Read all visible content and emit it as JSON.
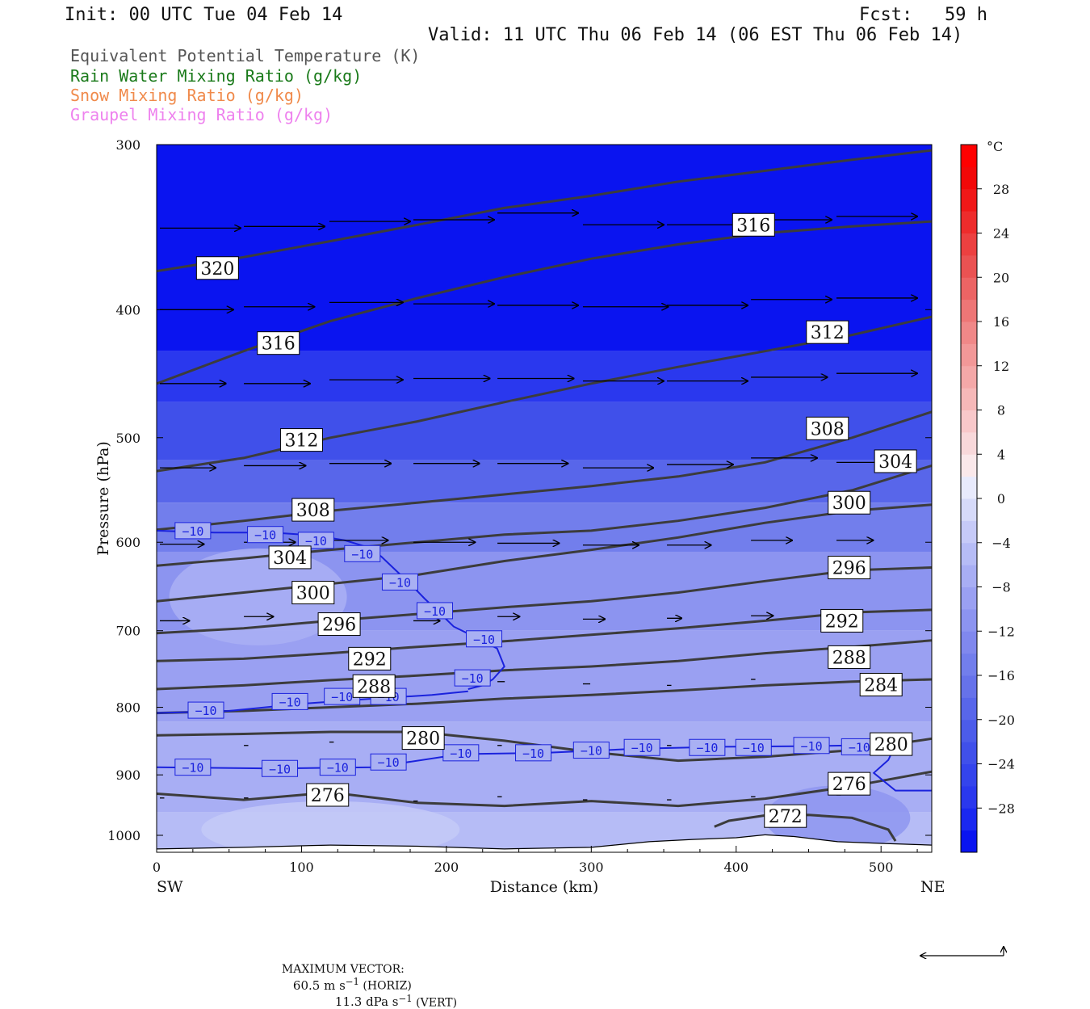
{
  "header": {
    "init": "Init: 00 UTC Tue 04 Feb 14",
    "fcst": "Fcst:   59 h",
    "valid": "Valid: 11 UTC Thu 06 Feb 14 (06 EST Thu 06 Feb 14)"
  },
  "legend": [
    {
      "text": "Equivalent Potential Temperature (K)",
      "color": "#555555"
    },
    {
      "text": "Rain Water Mixing Ratio (g/kg)",
      "color": "#1a7a1a"
    },
    {
      "text": "Snow Mixing Ratio (g/kg)",
      "color": "#f08a4b"
    },
    {
      "text": "Graupel Mixing Ratio (g/kg)",
      "color": "#ee82ee"
    }
  ],
  "chart_data": {
    "type": "heatmap",
    "title": "",
    "xlabel": "Distance (km)",
    "ylabel": "Pressure (hPa)",
    "xlim": [
      0,
      535
    ],
    "ylim": [
      1030,
      300
    ],
    "y_scale": "log",
    "xticks": [
      0,
      100,
      200,
      300,
      400,
      500
    ],
    "yticks": [
      300,
      400,
      500,
      600,
      700,
      800,
      900,
      1000
    ],
    "x_end_labels": {
      "left": "SW",
      "right": "NE"
    },
    "colorbar": {
      "unit": "°C",
      "ticks": [
        "28",
        "24",
        "20",
        "16",
        "12",
        "8",
        "4",
        "0",
        "−4",
        "−8",
        "−12",
        "−16",
        "−20",
        "−24",
        "−28"
      ],
      "tick_values": [
        28,
        24,
        20,
        16,
        12,
        8,
        4,
        0,
        -4,
        -8,
        -12,
        -16,
        -20,
        -24,
        -28
      ],
      "levels": [
        -32,
        -30,
        -28,
        -26,
        -24,
        -22,
        -20,
        -18,
        -16,
        -14,
        -12,
        -10,
        -8,
        -6,
        -4,
        -2,
        0,
        2,
        4,
        6,
        8,
        10,
        12,
        14,
        16,
        18,
        20,
        22,
        24,
        26,
        28,
        30,
        32
      ],
      "colors": [
        "#0a14f0",
        "#1a28f0",
        "#2a38ee",
        "#3444ec",
        "#4050ea",
        "#4c5cea",
        "#5866ea",
        "#6672ea",
        "#727eec",
        "#8088ee",
        "#8c94f0",
        "#9aa0f2",
        "#a8aef4",
        "#b6bcf6",
        "#c6caf8",
        "#d6daf9",
        "#e8eafc",
        "#fae8ea",
        "#f8d8da",
        "#f8c8ca",
        "#f6b8b8",
        "#f4a8a8",
        "#f29898",
        "#f08888",
        "#ee7676",
        "#ec6464",
        "#ea5252",
        "#ec4040",
        "#ee2c2c",
        "#f01818",
        "#f20808",
        "#ff0000"
      ]
    },
    "theta_e_contours": [
      {
        "label": "320",
        "x": [
          0,
          60,
          120,
          180,
          240,
          300,
          360,
          420,
          480,
          535
        ],
        "p": [
          374,
          365,
          355,
          345,
          335,
          328,
          320,
          314,
          308,
          303
        ]
      },
      {
        "label": "316",
        "x": [
          0,
          60,
          120,
          180,
          240,
          300,
          360,
          420,
          480,
          535
        ],
        "p": [
          455,
          430,
          408,
          392,
          378,
          366,
          357,
          350,
          346,
          343
        ]
      },
      {
        "label": "312",
        "x": [
          0,
          60,
          120,
          180,
          240,
          300,
          360,
          420,
          480,
          535
        ],
        "p": [
          530,
          518,
          500,
          486,
          470,
          455,
          442,
          430,
          418,
          405
        ]
      },
      {
        "label": "308",
        "x": [
          0,
          60,
          120,
          180,
          240,
          300,
          360,
          420,
          480,
          535
        ],
        "p": [
          587,
          578,
          568,
          560,
          552,
          544,
          535,
          522,
          500,
          478
        ]
      },
      {
        "label": "304",
        "x": [
          0,
          60,
          120,
          180,
          240,
          300,
          360,
          420,
          480,
          535
        ],
        "p": [
          625,
          617,
          608,
          600,
          592,
          588,
          578,
          565,
          548,
          525
        ]
      },
      {
        "label": "300",
        "x": [
          0,
          60,
          120,
          180,
          240,
          300,
          360,
          420,
          480,
          535
        ],
        "p": [
          665,
          655,
          645,
          635,
          620,
          608,
          595,
          580,
          568,
          562
        ]
      },
      {
        "label": "296",
        "x": [
          0,
          60,
          120,
          180,
          240,
          300,
          360,
          420,
          480,
          535
        ],
        "p": [
          703,
          697,
          688,
          680,
          672,
          665,
          655,
          642,
          630,
          627
        ]
      },
      {
        "label": "292",
        "x": [
          0,
          60,
          120,
          180,
          240,
          300,
          360,
          420,
          480,
          535
        ],
        "p": [
          738,
          735,
          728,
          720,
          713,
          705,
          697,
          688,
          678,
          675
        ]
      },
      {
        "label": "288",
        "x": [
          0,
          60,
          120,
          180,
          240,
          300,
          360,
          420,
          480,
          535
        ],
        "p": [
          775,
          770,
          763,
          757,
          750,
          745,
          738,
          728,
          720,
          712
        ]
      },
      {
        "label": "284",
        "x": [
          0,
          60,
          120,
          180,
          240,
          300,
          360,
          420,
          480,
          535
        ],
        "p": [
          808,
          805,
          800,
          795,
          788,
          783,
          777,
          770,
          765,
          762
        ]
      },
      {
        "label": "280",
        "x": [
          0,
          60,
          120,
          180,
          240,
          300,
          360,
          420,
          480,
          535
        ],
        "p": [
          840,
          838,
          835,
          835,
          848,
          865,
          878,
          872,
          862,
          845
        ]
      },
      {
        "label": "276",
        "x": [
          0,
          60,
          120,
          180,
          240,
          300,
          360,
          420,
          480,
          535
        ],
        "p": [
          930,
          940,
          928,
          945,
          950,
          942,
          950,
          938,
          918,
          895
        ]
      },
      {
        "label": "272",
        "x": [
          385,
          395,
          420,
          450,
          480,
          505,
          510
        ],
        "p": [
          985,
          975,
          966,
          965,
          970,
          990,
          1010
        ]
      }
    ],
    "temperature_contours": [
      {
        "label": "−10",
        "x": [
          0,
          40,
          80,
          110,
          130,
          145,
          155,
          165,
          175,
          185,
          195,
          205,
          220,
          235,
          240,
          232,
          225,
          215
        ],
        "p": [
          588,
          590,
          590,
          593,
          598,
          605,
          615,
          630,
          645,
          662,
          678,
          695,
          708,
          722,
          745,
          762,
          770,
          775
        ]
      },
      {
        "label": "−10",
        "x": [
          0,
          50,
          100,
          150,
          190,
          215
        ],
        "p": [
          808,
          805,
          795,
          788,
          783,
          778
        ]
      },
      {
        "label": "−10",
        "x": [
          0,
          80,
          150,
          210,
          270,
          330,
          390,
          450,
          510,
          505,
          495,
          510,
          535
        ],
        "p": [
          888,
          890,
          888,
          868,
          866,
          860,
          857,
          856,
          854,
          877,
          897,
          925,
          925
        ]
      }
    ],
    "temp_labels": [
      {
        "text": "−10",
        "x": 25,
        "p": 588
      },
      {
        "text": "−10",
        "x": 75,
        "p": 592
      },
      {
        "text": "−10",
        "x": 110,
        "p": 598
      },
      {
        "text": "−10",
        "x": 142,
        "p": 612
      },
      {
        "text": "−10",
        "x": 168,
        "p": 643
      },
      {
        "text": "−10",
        "x": 192,
        "p": 676
      },
      {
        "text": "−10",
        "x": 226,
        "p": 710
      },
      {
        "text": "−10",
        "x": 218,
        "p": 760
      },
      {
        "text": "−10",
        "x": 34,
        "p": 804
      },
      {
        "text": "−10",
        "x": 92,
        "p": 792
      },
      {
        "text": "−10",
        "x": 128,
        "p": 785
      },
      {
        "text": "−10",
        "x": 160,
        "p": 785
      },
      {
        "text": "−10",
        "x": 25,
        "p": 888
      },
      {
        "text": "−10",
        "x": 85,
        "p": 890
      },
      {
        "text": "−10",
        "x": 125,
        "p": 888
      },
      {
        "text": "−10",
        "x": 160,
        "p": 880
      },
      {
        "text": "−10",
        "x": 210,
        "p": 866
      },
      {
        "text": "−10",
        "x": 260,
        "p": 866
      },
      {
        "text": "−10",
        "x": 300,
        "p": 862
      },
      {
        "text": "−10",
        "x": 335,
        "p": 858
      },
      {
        "text": "−10",
        "x": 380,
        "p": 858
      },
      {
        "text": "−10",
        "x": 412,
        "p": 858
      },
      {
        "text": "−10",
        "x": 452,
        "p": 855
      },
      {
        "text": "−10",
        "x": 485,
        "p": 857
      }
    ],
    "theta_labels": [
      {
        "text": "316",
        "x": 412,
        "p": 345
      },
      {
        "text": "320",
        "x": 42,
        "p": 372
      },
      {
        "text": "316",
        "x": 84,
        "p": 424
      },
      {
        "text": "312",
        "x": 463,
        "p": 416
      },
      {
        "text": "312",
        "x": 100,
        "p": 502
      },
      {
        "text": "308",
        "x": 463,
        "p": 492
      },
      {
        "text": "304",
        "x": 510,
        "p": 521
      },
      {
        "text": "308",
        "x": 108,
        "p": 567
      },
      {
        "text": "300",
        "x": 478,
        "p": 560
      },
      {
        "text": "304",
        "x": 92,
        "p": 616
      },
      {
        "text": "296",
        "x": 478,
        "p": 627
      },
      {
        "text": "300",
        "x": 108,
        "p": 655
      },
      {
        "text": "292",
        "x": 473,
        "p": 688
      },
      {
        "text": "296",
        "x": 126,
        "p": 692
      },
      {
        "text": "288",
        "x": 478,
        "p": 733
      },
      {
        "text": "292",
        "x": 147,
        "p": 735
      },
      {
        "text": "284",
        "x": 500,
        "p": 769
      },
      {
        "text": "288",
        "x": 150,
        "p": 771
      },
      {
        "text": "280",
        "x": 184,
        "p": 844
      },
      {
        "text": "280",
        "x": 507,
        "p": 853
      },
      {
        "text": "276",
        "x": 478,
        "p": 914
      },
      {
        "text": "276",
        "x": 118,
        "p": 932
      },
      {
        "text": "272",
        "x": 434,
        "p": 967
      }
    ],
    "surface": {
      "x": [
        0,
        60,
        120,
        180,
        240,
        300,
        340,
        370,
        400,
        420,
        440,
        470,
        500,
        535
      ],
      "p": [
        1025,
        1022,
        1018,
        1020,
        1025,
        1022,
        1012,
        1008,
        1005,
        1000,
        1003,
        1012,
        1015,
        1018
      ]
    },
    "wind_vectors_note": "Arrows show horizontal wind plus vertical motion along cross-section",
    "wind_vectors": [
      {
        "x": 0,
        "p": 347,
        "u": 55,
        "w": 0
      },
      {
        "x": 58,
        "p": 346,
        "u": 55,
        "w": 0
      },
      {
        "x": 117,
        "p": 343,
        "u": 55,
        "w": 0
      },
      {
        "x": 175,
        "p": 342,
        "u": 55,
        "w": 0
      },
      {
        "x": 233,
        "p": 338,
        "u": 55,
        "w": 0
      },
      {
        "x": 292,
        "p": 345,
        "u": 55,
        "w": 0
      },
      {
        "x": 350,
        "p": 345,
        "u": 55,
        "w": 0
      },
      {
        "x": 408,
        "p": 342,
        "u": 55,
        "w": 0
      },
      {
        "x": 467,
        "p": 340,
        "u": 55,
        "w": 0
      },
      {
        "x": 0,
        "p": 400,
        "u": 50,
        "w": 0
      },
      {
        "x": 58,
        "p": 398,
        "u": 48,
        "w": 0
      },
      {
        "x": 117,
        "p": 395,
        "u": 50,
        "w": 0
      },
      {
        "x": 175,
        "p": 396,
        "u": 55,
        "w": 0
      },
      {
        "x": 233,
        "p": 397,
        "u": 55,
        "w": 0
      },
      {
        "x": 292,
        "p": 398,
        "u": 58,
        "w": 0
      },
      {
        "x": 350,
        "p": 397,
        "u": 55,
        "w": 0
      },
      {
        "x": 408,
        "p": 393,
        "u": 55,
        "w": 0
      },
      {
        "x": 467,
        "p": 392,
        "u": 55,
        "w": 0
      },
      {
        "x": 0,
        "p": 455,
        "u": 45,
        "w": 0
      },
      {
        "x": 58,
        "p": 455,
        "u": 45,
        "w": 0
      },
      {
        "x": 117,
        "p": 452,
        "u": 50,
        "w": 0
      },
      {
        "x": 175,
        "p": 451,
        "u": 52,
        "w": 0
      },
      {
        "x": 233,
        "p": 451,
        "u": 52,
        "w": 0
      },
      {
        "x": 292,
        "p": 453,
        "u": 55,
        "w": 0
      },
      {
        "x": 350,
        "p": 453,
        "u": 55,
        "w": 0
      },
      {
        "x": 408,
        "p": 450,
        "u": 52,
        "w": 0
      },
      {
        "x": 467,
        "p": 447,
        "u": 55,
        "w": 0
      },
      {
        "x": 0,
        "p": 527,
        "u": 38,
        "w": 0
      },
      {
        "x": 58,
        "p": 525,
        "u": 42,
        "w": 0
      },
      {
        "x": 117,
        "p": 523,
        "u": 42,
        "w": 0
      },
      {
        "x": 175,
        "p": 523,
        "u": 45,
        "w": 0
      },
      {
        "x": 233,
        "p": 523,
        "u": 48,
        "w": 0
      },
      {
        "x": 292,
        "p": 527,
        "u": 48,
        "w": 0
      },
      {
        "x": 350,
        "p": 524,
        "u": 45,
        "w": 0
      },
      {
        "x": 408,
        "p": 518,
        "u": 45,
        "w": 0
      },
      {
        "x": 467,
        "p": 522,
        "u": 45,
        "w": 0
      },
      {
        "x": 0,
        "p": 602,
        "u": 30,
        "w": 0
      },
      {
        "x": 58,
        "p": 600,
        "u": 35,
        "w": 0
      },
      {
        "x": 117,
        "p": 598,
        "u": 40,
        "w": 0
      },
      {
        "x": 175,
        "p": 600,
        "u": 42,
        "w": 0
      },
      {
        "x": 233,
        "p": 601,
        "u": 42,
        "w": 0
      },
      {
        "x": 292,
        "p": 603,
        "u": 38,
        "w": 0
      },
      {
        "x": 350,
        "p": 603,
        "u": 30,
        "w": 0
      },
      {
        "x": 408,
        "p": 598,
        "u": 28,
        "w": 0
      },
      {
        "x": 467,
        "p": 598,
        "u": 25,
        "w": 0
      },
      {
        "x": 0,
        "p": 688,
        "u": 20,
        "w": 0
      },
      {
        "x": 58,
        "p": 683,
        "u": 20,
        "w": 0
      },
      {
        "x": 117,
        "p": 683,
        "u": 20,
        "w": 0
      },
      {
        "x": 175,
        "p": 688,
        "u": 18,
        "w": 0
      },
      {
        "x": 233,
        "p": 683,
        "u": 15,
        "w": 0
      },
      {
        "x": 292,
        "p": 686,
        "u": 15,
        "w": 0
      },
      {
        "x": 350,
        "p": 685,
        "u": 10,
        "w": 0
      },
      {
        "x": 408,
        "p": 682,
        "u": 15,
        "w": 0
      },
      {
        "x": 467,
        "p": 682,
        "u": 15,
        "w": 0
      },
      {
        "x": 292,
        "p": 768,
        "u": 5,
        "w": 0
      },
      {
        "x": 233,
        "p": 765,
        "u": 5,
        "w": 0
      },
      {
        "x": 350,
        "p": 770,
        "u": 3,
        "w": 0
      },
      {
        "x": 408,
        "p": 762,
        "u": 3,
        "w": 0
      },
      {
        "x": 58,
        "p": 855,
        "u": 3,
        "w": 0
      },
      {
        "x": 117,
        "p": 850,
        "u": 3,
        "w": 0
      },
      {
        "x": 175,
        "p": 850,
        "u": 3,
        "w": 0
      },
      {
        "x": 233,
        "p": 855,
        "u": 3,
        "w": 0
      },
      {
        "x": 292,
        "p": 855,
        "u": 3,
        "w": 0
      },
      {
        "x": 350,
        "p": 855,
        "u": 3,
        "w": 0
      },
      {
        "x": 0,
        "p": 937,
        "u": 3,
        "w": 0
      },
      {
        "x": 58,
        "p": 937,
        "u": 3,
        "w": 0
      },
      {
        "x": 117,
        "p": 937,
        "u": 3,
        "w": 0
      },
      {
        "x": 175,
        "p": 942,
        "u": 3,
        "w": 0
      },
      {
        "x": 233,
        "p": 935,
        "u": 3,
        "w": 0
      },
      {
        "x": 292,
        "p": 940,
        "u": 3,
        "w": 0
      },
      {
        "x": 350,
        "p": 940,
        "u": 3,
        "w": 0
      },
      {
        "x": 408,
        "p": 935,
        "u": 3,
        "w": 0
      },
      {
        "x": 467,
        "p": 932,
        "u": 3,
        "w": 0
      }
    ]
  },
  "footer": {
    "max_vector_label": "MAXIMUM VECTOR:",
    "horiz_value": "60.5 m s",
    "horiz_exp": "−1",
    "horiz_tag": " (HORIZ)",
    "vert_value": "11.3 dPa s",
    "vert_exp": "−1",
    "vert_tag": " (VERT)"
  }
}
